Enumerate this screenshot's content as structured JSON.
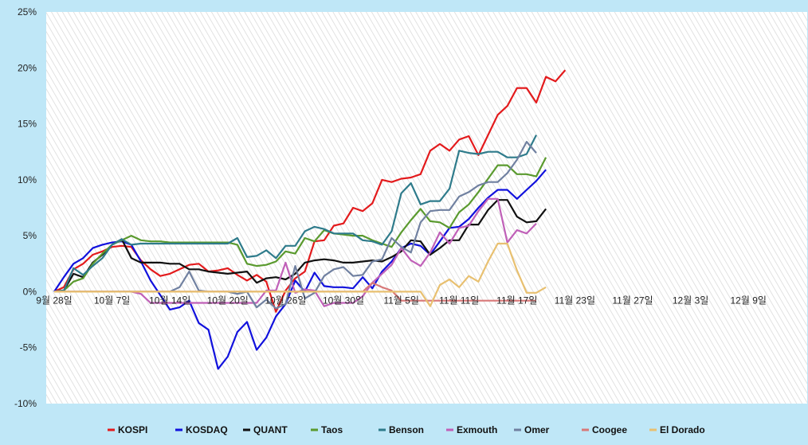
{
  "chart_data": {
    "type": "line",
    "title": "",
    "xlabel": "",
    "ylabel": "",
    "ylim": [
      -10,
      25
    ],
    "y_ticks": [
      "-10%",
      "-5%",
      "0%",
      "5%",
      "10%",
      "15%",
      "20%",
      "25%"
    ],
    "y_tick_values": [
      -10,
      -5,
      0,
      5,
      10,
      15,
      20,
      25
    ],
    "x_tick_labels": [
      "9월 28일",
      "10월 7일",
      "10월 14일",
      "10월 20일",
      "10월 26일",
      "10월 30일",
      "11월 5일",
      "11월 11일",
      "11월 17일",
      "11월 23일",
      "11월 27일",
      "12월 3일",
      "12월 9일"
    ],
    "x_tick_indices": [
      0,
      6,
      12,
      18,
      24,
      30,
      36,
      42,
      48,
      54,
      60,
      66,
      72
    ],
    "grid": "hatched",
    "legend_position": "bottom",
    "series": [
      {
        "name": "KOSPI",
        "color": "#e31a1c",
        "values": [
          0,
          0.4,
          2.0,
          2.5,
          3.3,
          3.6,
          4.0,
          4.1,
          4.0,
          2.8,
          2.0,
          1.4,
          1.6,
          2.0,
          2.4,
          2.5,
          1.8,
          1.9,
          2.1,
          1.5,
          1.0,
          1.5,
          0.9,
          -1.8,
          0.1,
          1.2,
          1.8,
          4.5,
          4.6,
          5.9,
          6.1,
          7.5,
          7.2,
          7.9,
          10.0,
          9.8,
          10.1,
          10.2,
          10.5,
          12.6,
          13.2,
          12.6,
          13.6,
          13.9,
          12.2,
          14.0,
          15.8,
          16.6,
          18.2,
          18.2,
          16.9,
          19.2,
          18.8,
          19.8
        ]
      },
      {
        "name": "KOSDAQ",
        "color": "#1111dd",
        "values": [
          0,
          1.3,
          2.5,
          3.0,
          3.9,
          4.2,
          4.4,
          4.5,
          4.2,
          2.7,
          1.0,
          -0.3,
          -1.6,
          -1.4,
          -0.8,
          -2.8,
          -3.4,
          -6.9,
          -5.8,
          -3.6,
          -2.7,
          -5.2,
          -4.1,
          -2.2,
          -1.1,
          1.0,
          0,
          1.7,
          0.5,
          0.4,
          0.4,
          0.3,
          1.3,
          0.3,
          1.8,
          2.7,
          3.9,
          4.3,
          4.1,
          3.3,
          4.5,
          5.7,
          5.8,
          6.5,
          7.5,
          8.4,
          9.1,
          9.1,
          8.3,
          9.1,
          9.9,
          10.9
        ]
      },
      {
        "name": "QUANT",
        "color": "#111111",
        "values": [
          0,
          0.1,
          1.6,
          1.3,
          2.6,
          3.3,
          4.2,
          4.7,
          3.0,
          2.6,
          2.6,
          2.6,
          2.5,
          2.5,
          2.0,
          2.0,
          1.8,
          1.7,
          1.6,
          1.7,
          1.8,
          0.8,
          1.2,
          1.3,
          1.1,
          1.6,
          2.6,
          2.8,
          2.9,
          2.8,
          2.6,
          2.6,
          2.7,
          2.8,
          2.7,
          3.1,
          3.6,
          4.6,
          4.5,
          3.3,
          3.9,
          4.6,
          4.6,
          6.0,
          6.0,
          7.3,
          8.2,
          8.2,
          6.7,
          6.2,
          6.3,
          7.4
        ]
      },
      {
        "name": "Taos",
        "color": "#5a9a2e",
        "values": [
          0,
          0.1,
          0.9,
          1.2,
          2.5,
          3.4,
          4.2,
          4.6,
          5.0,
          4.6,
          4.5,
          4.5,
          4.4,
          4.4,
          4.4,
          4.4,
          4.4,
          4.4,
          4.4,
          4.2,
          2.5,
          2.3,
          2.4,
          2.7,
          3.6,
          3.4,
          4.8,
          4.5,
          5.5,
          5.2,
          5.1,
          5.0,
          5.0,
          4.6,
          4.3,
          4.0,
          5.3,
          6.4,
          7.4,
          6.3,
          6.2,
          5.7,
          7.1,
          7.8,
          8.9,
          10.1,
          11.3,
          11.3,
          10.5,
          10.5,
          10.3,
          12.0
        ]
      },
      {
        "name": "Benson",
        "color": "#2e7b8b",
        "values": [
          0,
          0.1,
          2.1,
          1.5,
          2.3,
          3.0,
          4.2,
          4.7,
          4.2,
          4.3,
          4.3,
          4.3,
          4.3,
          4.3,
          4.3,
          4.3,
          4.3,
          4.3,
          4.3,
          4.8,
          3.1,
          3.2,
          3.7,
          3.0,
          4.1,
          4.1,
          5.4,
          5.8,
          5.6,
          5.2,
          5.2,
          5.2,
          4.6,
          4.5,
          4.2,
          5.4,
          8.8,
          9.7,
          7.8,
          8.1,
          8.1,
          9.2,
          12.6,
          12.4,
          12.3,
          12.5,
          12.5,
          12.0,
          12.0,
          12.3,
          14.0
        ]
      },
      {
        "name": "Exmouth",
        "color": "#c060b8",
        "values": [
          0,
          0,
          0,
          0,
          0,
          0,
          0,
          0,
          0,
          -0.2,
          -1.0,
          -1.0,
          -1.0,
          -1.0,
          -1.0,
          -1.0,
          -1.0,
          -1.0,
          -1.0,
          -1.0,
          -1.0,
          -1.0,
          0.1,
          0.1,
          2.6,
          -0.1,
          0.2,
          0.1,
          -1.3,
          -1.0,
          -1.0,
          -1.0,
          -0.4,
          0.8,
          1.6,
          2.4,
          3.9,
          2.8,
          2.3,
          3.5,
          5.3,
          4.3,
          5.7,
          5.9,
          7.2,
          8.3,
          8.3,
          4.4,
          5.5,
          5.2,
          6.1
        ]
      },
      {
        "name": "Omer",
        "color": "#7080a0",
        "values": [
          0,
          0,
          0,
          0,
          0,
          0,
          0,
          0,
          0,
          0,
          0,
          0,
          0,
          0.4,
          1.8,
          0.1,
          0,
          0,
          0,
          -0.2,
          0,
          -1.4,
          -0.7,
          -1.5,
          -1.1,
          2.3,
          -0.6,
          -0.1,
          1.4,
          2.0,
          2.2,
          1.4,
          1.5,
          2.7,
          2.9,
          4.8,
          4.0,
          3.5,
          6.2,
          7.2,
          7.3,
          7.3,
          8.5,
          8.9,
          9.5,
          9.8,
          9.8,
          10.6,
          11.8,
          13.4,
          12.4
        ]
      },
      {
        "name": "Coogee",
        "color": "#d87878",
        "values": [
          0,
          0,
          0,
          0,
          0,
          0,
          0,
          0,
          0,
          0,
          0,
          0,
          0,
          0,
          0,
          0,
          0,
          0,
          0,
          0,
          0,
          0,
          0,
          0,
          0,
          0,
          0,
          0,
          0,
          0,
          0,
          0,
          0,
          0.8,
          0.4,
          0.1,
          -0.8,
          -0.8,
          -0.8,
          -0.8,
          -0.8,
          -0.8,
          -0.8,
          -0.8,
          -0.8,
          -0.8,
          -0.8,
          -0.8,
          -0.8,
          -0.8,
          -0.8
        ]
      },
      {
        "name": "El Dorado",
        "color": "#e8c070",
        "values": [
          0,
          0,
          0,
          0,
          0,
          0,
          0,
          0,
          0,
          0,
          0,
          0,
          0,
          0,
          0,
          0,
          0,
          0,
          0,
          0,
          0,
          0,
          0,
          0,
          0,
          0,
          0,
          0,
          0,
          0,
          0,
          0,
          0,
          0,
          0,
          0,
          0,
          0,
          0,
          -1.3,
          0.6,
          1.1,
          0.4,
          1.4,
          0.9,
          2.7,
          4.3,
          4.3,
          1.9,
          -0.1,
          -0.1,
          0.4
        ]
      }
    ]
  }
}
